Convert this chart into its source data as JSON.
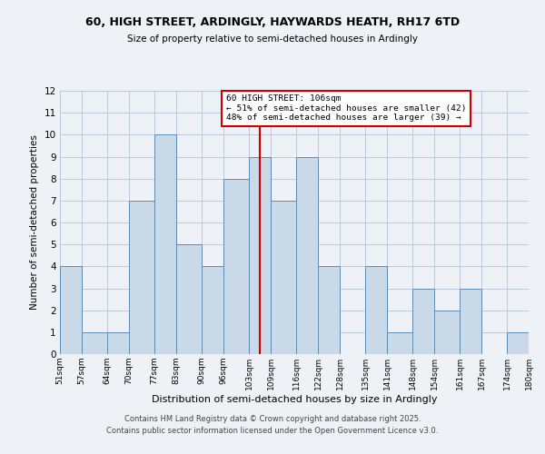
{
  "title": "60, HIGH STREET, ARDINGLY, HAYWARDS HEATH, RH17 6TD",
  "subtitle": "Size of property relative to semi-detached houses in Ardingly",
  "xlabel": "Distribution of semi-detached houses by size in Ardingly",
  "ylabel": "Number of semi-detached properties",
  "bin_edges": [
    51,
    57,
    64,
    70,
    77,
    83,
    90,
    96,
    103,
    109,
    116,
    122,
    128,
    135,
    141,
    148,
    154,
    161,
    167,
    174,
    180
  ],
  "bar_heights": [
    4,
    1,
    1,
    7,
    10,
    5,
    4,
    8,
    9,
    7,
    9,
    4,
    0,
    4,
    1,
    3,
    2,
    3,
    0,
    1
  ],
  "bar_color": "#c9d9e8",
  "bar_edge_color": "#5b8db8",
  "grid_color": "#c0c8d8",
  "property_line_x": 106,
  "property_line_color": "#cc0000",
  "annotation_title": "60 HIGH STREET: 106sqm",
  "annotation_line1": "← 51% of semi-detached houses are smaller (42)",
  "annotation_line2": "48% of semi-detached houses are larger (39) →",
  "annotation_box_color": "#cc0000",
  "ylim": [
    0,
    12
  ],
  "yticks": [
    0,
    1,
    2,
    3,
    4,
    5,
    6,
    7,
    8,
    9,
    10,
    11,
    12
  ],
  "tick_labels": [
    "51sqm",
    "57sqm",
    "64sqm",
    "70sqm",
    "77sqm",
    "83sqm",
    "90sqm",
    "96sqm",
    "103sqm",
    "109sqm",
    "116sqm",
    "122sqm",
    "128sqm",
    "135sqm",
    "141sqm",
    "148sqm",
    "154sqm",
    "161sqm",
    "167sqm",
    "174sqm",
    "180sqm"
  ],
  "footer1": "Contains HM Land Registry data © Crown copyright and database right 2025.",
  "footer2": "Contains public sector information licensed under the Open Government Licence v3.0.",
  "bg_color": "#eef2f7"
}
